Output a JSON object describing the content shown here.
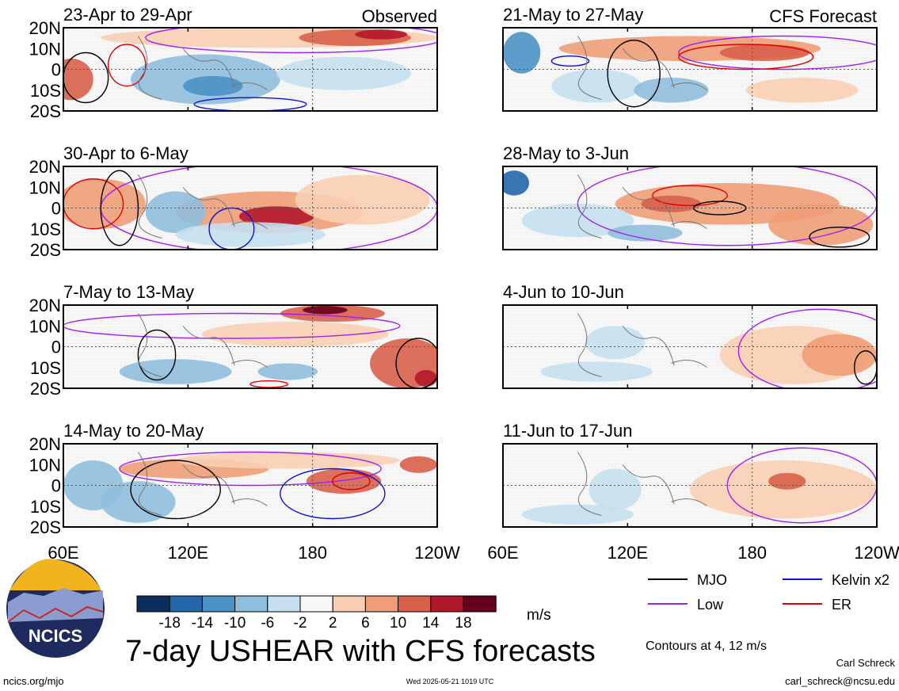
{
  "chart_data": {
    "type": "heatmap",
    "title": "7-day USHEAR with CFS forecasts",
    "unit": "m/s",
    "headers": {
      "observed": "Observed",
      "forecast": "CFS Forecast"
    },
    "y_ticks": [
      "20N",
      "10N",
      "0",
      "10S",
      "20S"
    ],
    "x_ticks": [
      "60E",
      "120E",
      "180",
      "120W"
    ],
    "panels": [
      {
        "period": "23-Apr to 29-Apr",
        "source": "Observed"
      },
      {
        "period": "30-Apr to 6-May",
        "source": "Observed"
      },
      {
        "period": "7-May to 13-May",
        "source": "Observed"
      },
      {
        "period": "14-May to 20-May",
        "source": "Observed"
      },
      {
        "period": "21-May to 27-May",
        "source": "CFS Forecast"
      },
      {
        "period": "28-May to 3-Jun",
        "source": "CFS Forecast"
      },
      {
        "period": "4-Jun to 10-Jun",
        "source": "CFS Forecast"
      },
      {
        "period": "11-Jun to 17-Jun",
        "source": "CFS Forecast"
      }
    ],
    "colorbar": {
      "ticks": [
        "-18",
        "-14",
        "-10",
        "-6",
        "-2",
        "2",
        "6",
        "10",
        "14",
        "18"
      ],
      "colors": [
        "#0a2f5e",
        "#2366aa",
        "#4b92c6",
        "#8fbedc",
        "#c5dfee",
        "#f7f7f7",
        "#f8cfb4",
        "#ee9d77",
        "#d9604a",
        "#b2182b",
        "#67001f"
      ]
    },
    "legend": [
      {
        "label": "MJO",
        "color": "#000000"
      },
      {
        "label": "Kelvin x2",
        "color": "#1010d0"
      },
      {
        "label": "Low",
        "color": "#a020f0"
      },
      {
        "label": "ER",
        "color": "#e00000"
      }
    ],
    "contours_note": "Contours at 4, 12 m/s"
  },
  "footer": {
    "site": "ncics.org/mjo",
    "timestamp": "Wed 2025-05-21 1019 UTC",
    "author": "Carl Schreck",
    "email": "carl_schreck@ncsu.edu",
    "logo_text": "NCICS"
  }
}
